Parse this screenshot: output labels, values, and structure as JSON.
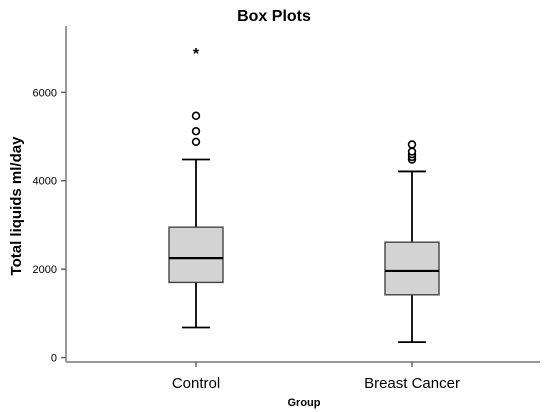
{
  "chart_data": {
    "type": "box",
    "title": "Box Plots",
    "xlabel": "Group",
    "ylabel": "Total liquids ml/day",
    "ylim": [
      -100,
      7500
    ],
    "yticks": [
      0,
      2000,
      4000,
      6000
    ],
    "grid": false,
    "categories": [
      "Control",
      "Breast Cancer"
    ],
    "boxes": [
      {
        "category": "Control",
        "whisker_low": 680,
        "q1": 1700,
        "median": 2250,
        "q3": 2950,
        "whisker_high": 4480,
        "outliers": [
          4880,
          5120,
          5470
        ],
        "extremes": [
          7000
        ]
      },
      {
        "category": "Breast Cancer",
        "whisker_low": 350,
        "q1": 1420,
        "median": 1960,
        "q3": 2610,
        "whisker_high": 4210,
        "outliers": [
          4480,
          4540,
          4600,
          4660,
          4820
        ],
        "extremes": []
      }
    ]
  }
}
